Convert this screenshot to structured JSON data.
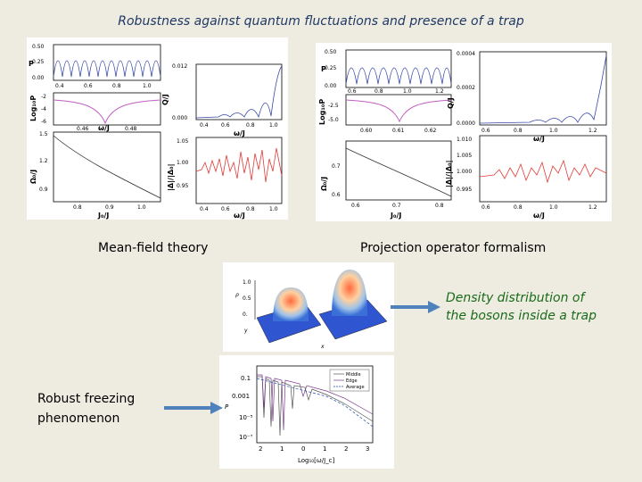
{
  "slide": {
    "title": "Robustness against quantum fluctuations and presence of a trap",
    "left_caption": "Mean-field theory",
    "right_caption": "Projection operator formalism",
    "density_note_line1": "Density distribution of",
    "density_note_line2": "the bosons inside a trap",
    "freezing_line1": "Robust freezing",
    "freezing_line2": "phenomenon"
  },
  "colors": {
    "title": "#1f3864",
    "note": "#1a6b1a",
    "arrow": "#4f81bd",
    "background": "#eeece1"
  },
  "left_figure": {
    "ticks_P": [
      "0.50",
      "0.25",
      "0.00"
    ],
    "ticks_Q": [
      "0.012",
      "0.000"
    ],
    "ticks_logP": [
      "-2",
      "-4",
      "-6"
    ],
    "ticks_phi": [
      "1.5",
      "1.2",
      "0.9"
    ],
    "ticks_delta": [
      "1.05",
      "1.00",
      "0.95"
    ],
    "ticks_x_small": [
      "0.4",
      "0.6",
      "0.8",
      "1.0"
    ],
    "ticks_x_mid": [
      "0.46",
      "0.48"
    ],
    "ticks_x_bottom": [
      "0.8",
      "0.9",
      "1.0"
    ],
    "ylab_P": "P",
    "ylab_logP": "Log₁₀P",
    "ylab_Q": "Q/J",
    "ylab_phi": "Ω₀/J",
    "ylab_delta": "|Δ|/|Δ₀|",
    "xlab_omega": "ω/J",
    "xlab_J": "J₀/J"
  },
  "right_figure": {
    "ticks_P": [
      "0.50",
      "0.25",
      "0.00"
    ],
    "ticks_Q": [
      "0.0004",
      "0.0002",
      "0.0000"
    ],
    "ticks_logP": [
      "-2.5",
      "-5.0"
    ],
    "ticks_phi": [
      "0.7",
      "0.6"
    ],
    "ticks_delta": [
      "1.010",
      "1.005",
      "1.000",
      "0.995"
    ],
    "ticks_x_small": [
      "0.6",
      "0.8",
      "1.0",
      "1.2"
    ],
    "ticks_x_mid": [
      "0.60",
      "0.61",
      "0.62"
    ],
    "ticks_x_bottom": [
      "0.6",
      "0.7",
      "0.8"
    ],
    "ylab_P": "P",
    "ylab_logP": "Log₁₀P",
    "ylab_Q": "Q/J",
    "ylab_phi": "Ω₀/J",
    "ylab_delta": "|Δ|/|Δ₀|",
    "xlab_omega": "ω/J",
    "xlab_J": "J₀/J"
  },
  "density_plot": {
    "ticks_p": [
      "1.0",
      "0.5",
      "0."
    ],
    "ylab": "ρ",
    "axis_x": "x",
    "axis_y": "y"
  },
  "freezing_plot": {
    "ylab": "P",
    "ticks_y": [
      "0.1",
      "0.001",
      "10⁻⁵",
      "10⁻⁷"
    ],
    "ticks_x": [
      "2",
      "1",
      "0",
      "1",
      "2",
      "3"
    ],
    "xlab": "Log₁₀[ω/J_c]",
    "legend": [
      "Middle",
      "Edge",
      "Average"
    ]
  }
}
